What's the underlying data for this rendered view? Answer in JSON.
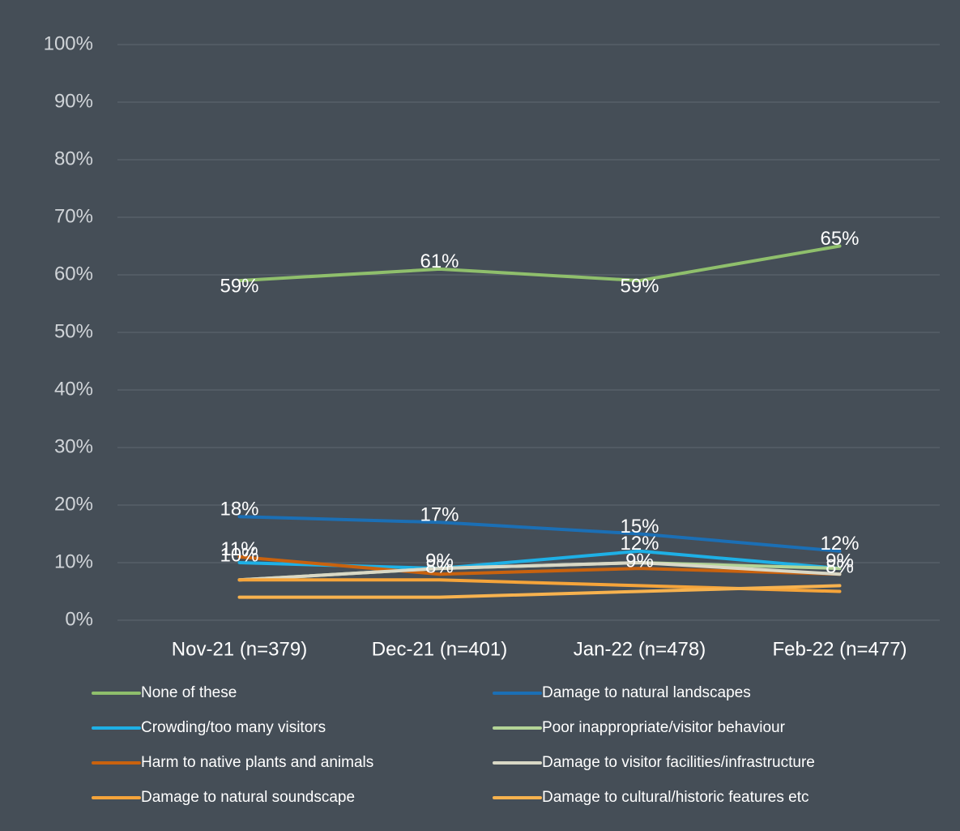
{
  "chart_data": {
    "type": "line",
    "categories": [
      "Nov-21 (n=379)",
      "Dec-21 (n=401)",
      "Jan-22 (n=478)",
      "Feb-22 (n=477)"
    ],
    "ylim": [
      0,
      100
    ],
    "yticks": [
      {
        "value": 0,
        "label": "0%"
      },
      {
        "value": 10,
        "label": "10%"
      },
      {
        "value": 20,
        "label": "20%"
      },
      {
        "value": 30,
        "label": "30%"
      },
      {
        "value": 40,
        "label": "40%"
      },
      {
        "value": 50,
        "label": "50%"
      },
      {
        "value": 60,
        "label": "60%"
      },
      {
        "value": 70,
        "label": "70%"
      },
      {
        "value": 80,
        "label": "80%"
      },
      {
        "value": 90,
        "label": "90%"
      },
      {
        "value": 100,
        "label": "100%"
      }
    ],
    "grid": true,
    "legend": "bottom",
    "series": [
      {
        "name": "None of these",
        "color": "#8fbf6c",
        "values": [
          59,
          61,
          59,
          65
        ],
        "value_labels": [
          "59%",
          "61%",
          "59%",
          "65%"
        ]
      },
      {
        "name": "Damage to natural landscapes",
        "color": "#1b6fb5",
        "values": [
          18,
          17,
          15,
          12
        ],
        "value_labels": [
          "18%",
          "17%",
          "15%",
          "12%"
        ]
      },
      {
        "name": "Crowding/too many visitors",
        "color": "#1eb0e6",
        "values": [
          10,
          9,
          12,
          9
        ],
        "value_labels": [
          "10%",
          "9%",
          "12%",
          "9%"
        ]
      },
      {
        "name": "Poor inappropriate/visitor behaviour",
        "color": "#b3d497",
        "values": [
          7,
          9,
          10,
          9
        ]
      },
      {
        "name": "Harm to native plants and animals",
        "color": "#c9620e",
        "values": [
          11,
          8,
          9,
          8
        ],
        "value_labels": [
          "11%",
          "8%",
          "9%",
          "8%"
        ]
      },
      {
        "name": "Damage to visitor facilities/infrastructure",
        "color": "#d9d8c6",
        "values": [
          7,
          9,
          10,
          8
        ]
      },
      {
        "name": "Damage to natural soundscape",
        "color": "#f5a43a",
        "values": [
          7,
          7,
          6,
          5
        ]
      },
      {
        "name": "Damage to cultural/historic features etc",
        "color": "#f7b24e",
        "values": [
          4,
          4,
          5,
          6
        ]
      }
    ]
  }
}
